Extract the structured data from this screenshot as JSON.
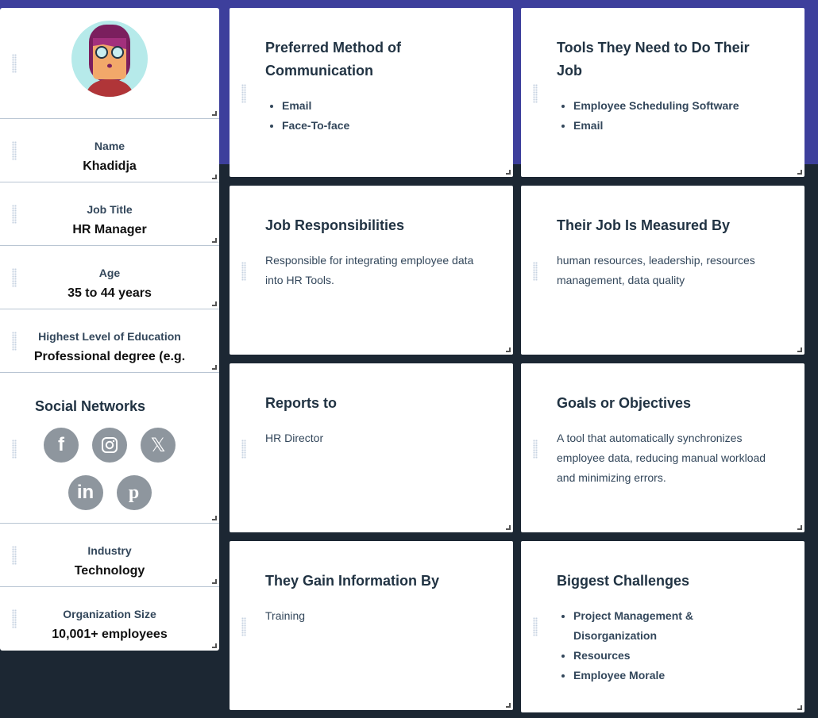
{
  "colors": {
    "top_band": "#3d3f9c",
    "background": "#1c2733",
    "social_icon": "#8e969e"
  },
  "profile": {
    "avatar": "woman-with-glasses-avatar",
    "name_label": "Name",
    "name": "Khadidja",
    "job_label": "Job Title",
    "job": "HR Manager",
    "age_label": "Age",
    "age": "35 to 44 years",
    "edu_label": "Highest Level of Education",
    "edu": "Professional degree (e.g.",
    "social_title": "Social Networks",
    "social": [
      "facebook-icon",
      "instagram-icon",
      "x-icon",
      "linkedin-icon",
      "pinterest-icon"
    ],
    "industry_label": "Industry",
    "industry": "Technology",
    "org_label": "Organization Size",
    "org": "10,001+ employees"
  },
  "cards": [
    {
      "title": "Preferred Method of Communication",
      "items": [
        "Email",
        "Face-To-face"
      ]
    },
    {
      "title": "Tools They Need to Do Their Job",
      "items": [
        "Employee Scheduling Software",
        "Email"
      ]
    },
    {
      "title": "Job Responsibilities",
      "text": "Responsible for integrating employee data into HR Tools."
    },
    {
      "title": "Their Job Is Measured By",
      "text": "human resources, leadership, resources management, data quality"
    },
    {
      "title": "Reports to",
      "text": "HR Director"
    },
    {
      "title": "Goals or Objectives",
      "text": "A tool that automatically synchronizes employee data, reducing manual workload and minimizing errors."
    },
    {
      "title": "They Gain Information By",
      "text": "Training"
    },
    {
      "title": "Biggest Challenges",
      "items": [
        "Project Management & Disorganization",
        "Resources",
        "Employee Morale"
      ]
    }
  ]
}
